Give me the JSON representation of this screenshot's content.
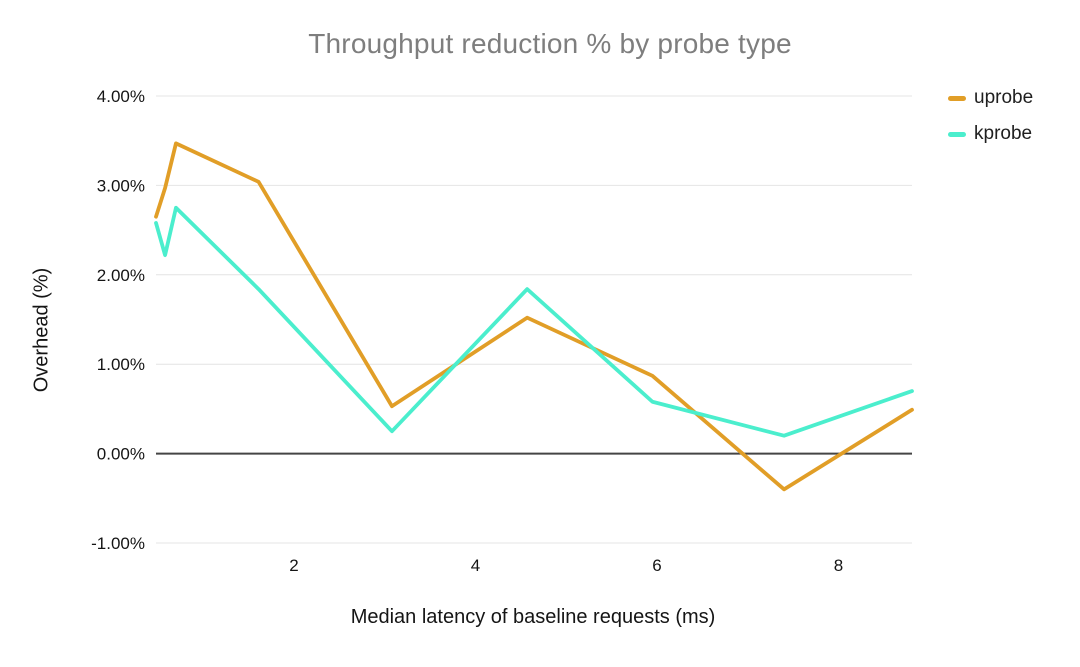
{
  "chart_data": {
    "type": "line",
    "title": "Throughput reduction % by probe type",
    "xlabel": "Median latency of baseline requests (ms)",
    "ylabel": "Overhead (%)",
    "x": [
      0.48,
      0.58,
      0.7,
      1.61,
      3.08,
      4.57,
      5.95,
      7.4,
      8.81
    ],
    "series": [
      {
        "name": "uprobe",
        "color": "#E19E27",
        "values": [
          2.65,
          2.97,
          3.47,
          3.04,
          0.53,
          1.52,
          0.87,
          -0.4,
          0.49
        ]
      },
      {
        "name": "kprobe",
        "color": "#4BEECD",
        "values": [
          2.58,
          2.22,
          2.75,
          1.84,
          0.25,
          1.84,
          0.58,
          0.2,
          0.7
        ]
      }
    ],
    "legend_position": "top-right",
    "grid": true,
    "zero_baseline": true,
    "xlim": [
      0.48,
      8.81
    ],
    "ylim": [
      -1,
      4
    ],
    "x_ticks": [
      {
        "value": 2,
        "label": "2"
      },
      {
        "value": 4,
        "label": "4"
      },
      {
        "value": 6,
        "label": "6"
      },
      {
        "value": 8,
        "label": "8"
      }
    ],
    "y_ticks": [
      {
        "value": 4,
        "label": "4.00%"
      },
      {
        "value": 3,
        "label": "3.00%"
      },
      {
        "value": 2,
        "label": "2.00%"
      },
      {
        "value": 1,
        "label": "1.00%"
      },
      {
        "value": 0,
        "label": "0.00%"
      },
      {
        "value": -1,
        "label": "-1.00%"
      }
    ]
  },
  "colors": {
    "uprobe": "#E19E27",
    "kprobe": "#4BEECD",
    "title_text": "#7E7E7E",
    "axis_text": "#151515",
    "gridline": "#E4E4E4",
    "zero_line": "#454545",
    "background": "#FFFFFF"
  }
}
